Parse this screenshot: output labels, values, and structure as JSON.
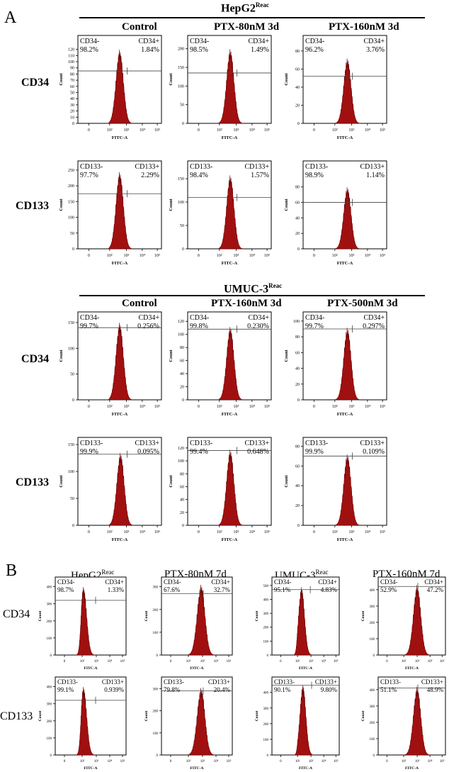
{
  "figure": {
    "panel_a_letter": "A",
    "panel_b_letter": "B",
    "group_hepg2": {
      "title": "HepG2",
      "superscript": "Reac",
      "columns": [
        "Control",
        "PTX-80nM 3d",
        "PTX-160nM 3d"
      ]
    },
    "group_umuc3": {
      "title": "UMUC-3",
      "superscript": "Reac",
      "columns": [
        "Control",
        "PTX-160nM 3d",
        "PTX-500nM 3d"
      ]
    },
    "row_labels_a": [
      "CD34",
      "CD133",
      "CD34",
      "CD133"
    ],
    "panel_b": {
      "columns": [
        {
          "title": "HepG2",
          "superscript": "Reac"
        },
        {
          "title": "PTX-80nM 7d",
          "superscript": ""
        },
        {
          "title": "UMUC-3",
          "superscript": "Reac"
        },
        {
          "title": "PTX-160nM 7d",
          "superscript": ""
        }
      ],
      "row_labels": [
        "CD34",
        "CD133"
      ]
    },
    "colors": {
      "histogram_fill": "#a01010",
      "histogram_stroke": "#6a0000"
    }
  },
  "chart_data": [
    {
      "type": "histogram",
      "panel": "A",
      "group": "HepG2 Reac",
      "condition": "Control",
      "marker": "CD34",
      "xlabel": "FITC-A",
      "ylabel": "Count",
      "yticks": [
        0,
        10,
        20,
        30,
        40,
        50,
        60,
        70,
        80,
        90,
        100,
        110,
        120
      ],
      "xticks": [
        "0",
        "10²",
        "10³",
        "10⁴",
        "10⁵"
      ],
      "neg_label": "CD34-",
      "neg_pct": "98.2%",
      "pos_label": "CD34+",
      "pos_pct": "1.84%",
      "ymax": 138,
      "peak": 120,
      "peak_log": 2.6,
      "gate_y": 85
    },
    {
      "type": "histogram",
      "panel": "A",
      "group": "HepG2 Reac",
      "condition": "PTX-80nM 3d",
      "marker": "CD34",
      "xlabel": "FITC-A",
      "ylabel": "Count",
      "yticks": [
        0,
        50,
        100,
        150,
        200
      ],
      "xticks": [
        "0",
        "10²",
        "10³",
        "10⁴",
        "10⁵"
      ],
      "neg_label": "CD34-",
      "neg_pct": "98.5%",
      "pos_label": "CD34+",
      "pos_pct": "1.49%",
      "ymax": 228,
      "peak": 200,
      "peak_log": 2.65,
      "gate_y": 135
    },
    {
      "type": "histogram",
      "panel": "A",
      "group": "HepG2 Reac",
      "condition": "PTX-160nM 3d",
      "marker": "CD34",
      "xlabel": "FITC-A",
      "ylabel": "Count",
      "yticks": [
        0,
        20,
        40,
        60,
        80
      ],
      "xticks": [
        "0",
        "10²",
        "10³",
        "10⁴",
        "10⁵"
      ],
      "neg_label": "CD34-",
      "neg_pct": "96.2%",
      "pos_label": "CD34+",
      "pos_pct": "3.76%",
      "ymax": 94,
      "peak": 72,
      "peak_log": 2.75,
      "gate_y": 52
    },
    {
      "type": "histogram",
      "panel": "A",
      "group": "HepG2 Reac",
      "condition": "Control",
      "marker": "CD133",
      "xlabel": "FITC-A",
      "ylabel": "Count",
      "yticks": [
        0,
        50,
        100,
        150,
        200,
        250
      ],
      "xticks": [
        "0",
        "10²",
        "10³",
        "10⁴",
        "10⁵"
      ],
      "neg_label": "CD133-",
      "neg_pct": "97.7%",
      "pos_label": "CD133+",
      "pos_pct": "2.29%",
      "ymax": 270,
      "peak": 245,
      "peak_log": 2.6,
      "gate_y": 175
    },
    {
      "type": "histogram",
      "panel": "A",
      "group": "HepG2 Reac",
      "condition": "PTX-80nM 3d",
      "marker": "CD133",
      "xlabel": "FITC-A",
      "ylabel": "Count",
      "yticks": [
        0,
        50,
        100,
        150
      ],
      "xticks": [
        "0",
        "10²",
        "10³",
        "10⁴",
        "10⁵"
      ],
      "neg_label": "CD133-",
      "neg_pct": "98.4%",
      "pos_label": "CD133+",
      "pos_pct": "1.57%",
      "ymax": 182,
      "peak": 158,
      "peak_log": 2.65,
      "gate_y": 110
    },
    {
      "type": "histogram",
      "panel": "A",
      "group": "HepG2 Reac",
      "condition": "PTX-160nM 3d",
      "marker": "CD133",
      "xlabel": "FITC-A",
      "ylabel": "Count",
      "yticks": [
        0,
        20,
        40,
        60,
        80
      ],
      "xticks": [
        "0",
        "10²",
        "10³",
        "10⁴",
        "10⁵"
      ],
      "neg_label": "CD133-",
      "neg_pct": "98.9%",
      "pos_label": "CD133+",
      "pos_pct": "1.14%",
      "ymax": 110,
      "peak": 80,
      "peak_log": 2.75,
      "gate_y": 60
    },
    {
      "type": "histogram",
      "panel": "A",
      "group": "UMUC-3 Reac",
      "condition": "Control",
      "marker": "CD34",
      "xlabel": "FITC-A",
      "ylabel": "Count",
      "yticks": [
        0,
        50,
        100,
        150
      ],
      "xticks": [
        "0",
        "10²",
        "10³",
        "10⁴",
        "10⁵"
      ],
      "neg_label": "CD34-",
      "neg_pct": "99.7%",
      "pos_label": "CD34+",
      "pos_pct": "0.256%",
      "ymax": 165,
      "peak": 150,
      "peak_log": 2.6,
      "gate_y": 140
    },
    {
      "type": "histogram",
      "panel": "A",
      "group": "UMUC-3 Reac",
      "condition": "PTX-160nM 3d",
      "marker": "CD34",
      "xlabel": "FITC-A",
      "ylabel": "Count",
      "yticks": [
        0,
        20,
        40,
        60,
        80,
        100,
        120
      ],
      "xticks": [
        "0",
        "10²",
        "10³",
        "10⁴",
        "10⁵"
      ],
      "neg_label": "CD34-",
      "neg_pct": "99.8%",
      "pos_label": "CD34+",
      "pos_pct": "0.230%",
      "ymax": 130,
      "peak": 112,
      "peak_log": 2.65,
      "gate_y": 108
    },
    {
      "type": "histogram",
      "panel": "A",
      "group": "UMUC-3 Reac",
      "condition": "PTX-500nM 3d",
      "marker": "CD34",
      "xlabel": "FITC-A",
      "ylabel": "Count",
      "yticks": [
        0,
        20,
        40,
        60,
        80,
        100
      ],
      "xticks": [
        "0",
        "10²",
        "10³",
        "10⁴",
        "10⁵"
      ],
      "neg_label": "CD34-",
      "neg_pct": "99.7%",
      "pos_label": "CD34+",
      "pos_pct": "0.297%",
      "ymax": 108,
      "peak": 92,
      "peak_log": 2.75,
      "gate_y": 90
    },
    {
      "type": "histogram",
      "panel": "A",
      "group": "UMUC-3 Reac",
      "condition": "Control",
      "marker": "CD133",
      "xlabel": "FITC-A",
      "ylabel": "Count",
      "yticks": [
        0,
        50,
        100,
        150
      ],
      "xticks": [
        "0",
        "10²",
        "10³",
        "10⁴",
        "10⁵"
      ],
      "neg_label": "CD133-",
      "neg_pct": "99.9%",
      "pos_label": "CD133+",
      "pos_pct": "0.095%",
      "ymax": 158,
      "peak": 135,
      "peak_log": 2.65,
      "gate_y": 132
    },
    {
      "type": "histogram",
      "panel": "A",
      "group": "UMUC-3 Reac",
      "condition": "PTX-160nM 3d",
      "marker": "CD133",
      "xlabel": "FITC-A",
      "ylabel": "Count",
      "yticks": [
        0,
        20,
        40,
        60,
        80,
        100,
        120
      ],
      "xticks": [
        "0",
        "10²",
        "10³",
        "10⁴",
        "10⁵"
      ],
      "neg_label": "CD133-",
      "neg_pct": "99.4%",
      "pos_label": "CD133+",
      "pos_pct": "0.648%",
      "ymax": 132,
      "peak": 118,
      "peak_log": 2.65,
      "gate_y": 116
    },
    {
      "type": "histogram",
      "panel": "A",
      "group": "UMUC-3 Reac",
      "condition": "PTX-500nM 3d",
      "marker": "CD133",
      "xlabel": "FITC-A",
      "ylabel": "Count",
      "yticks": [
        0,
        20,
        40,
        60,
        80
      ],
      "xticks": [
        "0",
        "10²",
        "10³",
        "10⁴",
        "10⁵"
      ],
      "neg_label": "CD133-",
      "neg_pct": "99.9%",
      "pos_label": "CD133+",
      "pos_pct": "0.109%",
      "ymax": 86,
      "peak": 72,
      "peak_log": 2.75,
      "gate_y": 70
    },
    {
      "type": "histogram",
      "panel": "B",
      "condition": "HepG2 Reac",
      "marker": "CD34",
      "xlabel": "FITC-A",
      "ylabel": "Count",
      "yticks": [
        0,
        100,
        200,
        300,
        400
      ],
      "xticks": [
        "0",
        "10²",
        "10³",
        "10⁴",
        "10⁵"
      ],
      "neg_label": "CD34-",
      "neg_pct": "98.7%",
      "pos_label": "CD34+",
      "pos_pct": "1.33%",
      "ymax": 440,
      "peak": 400,
      "peak_log": 2.1,
      "gate_y": 320
    },
    {
      "type": "histogram",
      "panel": "B",
      "condition": "PTX-80nM 7d",
      "marker": "CD34",
      "xlabel": "FITC-A",
      "ylabel": "Count",
      "yticks": [
        0,
        100,
        200,
        300
      ],
      "xticks": [
        "0",
        "10²",
        "10³",
        "10⁴",
        "10⁵"
      ],
      "neg_label": "CD34-",
      "neg_pct": "67.6%",
      "pos_label": "CD34+",
      "pos_pct": "32.7%",
      "ymax": 330,
      "peak": 310,
      "peak_log": 2.9,
      "gate_y": 270
    },
    {
      "type": "histogram",
      "panel": "B",
      "condition": "UMUC-3 Reac",
      "marker": "CD34",
      "xlabel": "FITC-A",
      "ylabel": "Count",
      "yticks": [
        0,
        100,
        200,
        300,
        400,
        500
      ],
      "xticks": [
        "0",
        "10²",
        "10³",
        "10⁴",
        "10⁵"
      ],
      "neg_label": "CD34-",
      "neg_pct": "95.1%",
      "pos_label": "CD34+",
      "pos_pct": "4.83%",
      "ymax": 540,
      "peak": 490,
      "peak_log": 2.3,
      "gate_y": 470
    },
    {
      "type": "histogram",
      "panel": "B",
      "condition": "PTX-160nM 7d",
      "marker": "CD34",
      "xlabel": "FITC-A",
      "ylabel": "Count",
      "yticks": [
        0,
        100,
        200,
        300,
        400
      ],
      "xticks": [
        "0",
        "10²",
        "10³",
        "10⁴",
        "10⁵"
      ],
      "neg_label": "CD34-",
      "neg_pct": "52.9%",
      "pos_label": "CD34+",
      "pos_pct": "47.2%",
      "ymax": 460,
      "peak": 430,
      "peak_log": 3.0,
      "gate_y": 420
    },
    {
      "type": "histogram",
      "panel": "B",
      "condition": "HepG2 Reac",
      "marker": "CD133",
      "xlabel": "FITC-A",
      "ylabel": "Count",
      "yticks": [
        0,
        100,
        200,
        300,
        400
      ],
      "xticks": [
        "0",
        "10²",
        "10³",
        "10⁴",
        "10⁵"
      ],
      "neg_label": "CD133-",
      "neg_pct": "99.1%",
      "pos_label": "CD133+",
      "pos_pct": "0.939%",
      "ymax": 440,
      "peak": 400,
      "peak_log": 2.1,
      "gate_y": 320
    },
    {
      "type": "histogram",
      "panel": "B",
      "condition": "PTX-80nM 7d",
      "marker": "CD133",
      "xlabel": "FITC-A",
      "ylabel": "Count",
      "yticks": [
        0,
        100,
        200,
        300
      ],
      "xticks": [
        "0",
        "10²",
        "10³",
        "10⁴",
        "10⁵"
      ],
      "neg_label": "CD133-",
      "neg_pct": "79.8%",
      "pos_label": "CD133+",
      "pos_pct": "20.4%",
      "ymax": 340,
      "peak": 305,
      "peak_log": 2.9,
      "gate_y": 290
    },
    {
      "type": "histogram",
      "panel": "B",
      "condition": "UMUC-3 Reac",
      "marker": "CD133",
      "xlabel": "FITC-A",
      "ylabel": "Count",
      "yticks": [
        0,
        100,
        200,
        300,
        400
      ],
      "xticks": [
        "0",
        "10²",
        "10³",
        "10⁴",
        "10⁵"
      ],
      "neg_label": "CD133-",
      "neg_pct": "90.1%",
      "pos_label": "CD133+",
      "pos_pct": "9.80%",
      "ymax": 480,
      "peak": 450,
      "peak_log": 2.4,
      "gate_y": 445
    },
    {
      "type": "histogram",
      "panel": "B",
      "condition": "PTX-160nM 7d",
      "marker": "CD133",
      "xlabel": "FITC-A",
      "ylabel": "Count",
      "yticks": [
        0,
        100,
        200,
        300,
        400
      ],
      "xticks": [
        "0",
        "10²",
        "10³",
        "10⁴",
        "10⁵"
      ],
      "neg_label": "CD133-",
      "neg_pct": "51.1%",
      "pos_label": "CD133+",
      "pos_pct": "48.9%",
      "ymax": 460,
      "peak": 420,
      "peak_log": 3.0,
      "gate_y": 410
    }
  ]
}
